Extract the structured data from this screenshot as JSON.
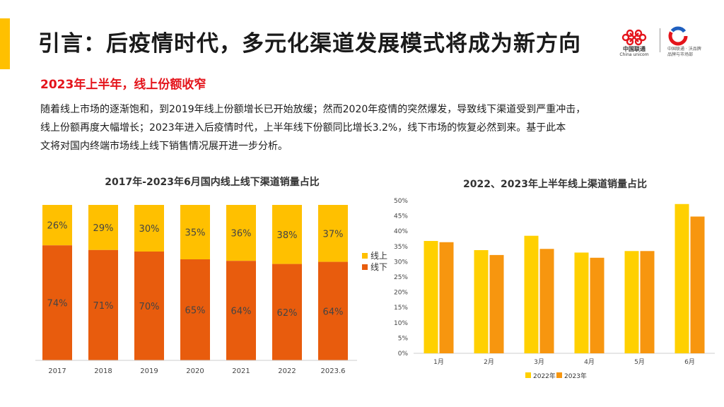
{
  "header": {
    "title": "引言：后疫情时代，多元化渠道发展模式将成为新方向",
    "logo_cu_text": "中国联通",
    "logo_cu_en": "China unicom",
    "logo2_text": "中国联通 · 沃品牌",
    "logo2_sub": "品牌与市场部"
  },
  "subtitle": "2023年上半年，线上份额收窄",
  "paragraph": {
    "line1": "随着线上市场的逐渐饱和，到2019年线上份额增长已开始放缓；然而2020年疫情的突然爆发，导致线下渠道受到严重冲击，",
    "line2": "线上份额再度大幅增长；2023年进入后疫情时代，上半年线下份额同比增长3.2%，线下市场的恢复必然到来。基于此本",
    "line3": "文将对国内终端市场线上线下销售情况展开进一步分析。"
  },
  "colors": {
    "online": "#ffc000",
    "offline": "#e85c0d",
    "y2022": "#ffd000",
    "y2023": "#f7960f",
    "accent": "#ffc000",
    "red": "#e4141b"
  },
  "chart_data": [
    {
      "type": "bar",
      "stacked": true,
      "percent": true,
      "title": "2017年-2023年6月国内线上线下渠道销量占比",
      "categories": [
        "2017",
        "2018",
        "2019",
        "2020",
        "2021",
        "2022",
        "2023.6"
      ],
      "series": [
        {
          "name": "线下",
          "values": [
            74,
            71,
            70,
            65,
            64,
            62,
            64
          ],
          "labels": [
            "74%",
            "71%",
            "70%",
            "65%",
            "64%",
            "62%",
            "64%"
          ]
        },
        {
          "name": "线上",
          "values": [
            26,
            29,
            30,
            35,
            36,
            38,
            37
          ],
          "labels": [
            "26%",
            "29%",
            "30%",
            "35%",
            "36%",
            "38%",
            "37%"
          ]
        }
      ],
      "legend": [
        "线上",
        "线下"
      ],
      "legend_position": "right"
    },
    {
      "type": "bar",
      "title": "2022、2023年上半年线上渠道销量占比",
      "categories": [
        "1月",
        "2月",
        "3月",
        "4月",
        "5月",
        "6月"
      ],
      "series": [
        {
          "name": "2022年",
          "values": [
            36.8,
            33.8,
            38.5,
            33.0,
            33.5,
            48.9
          ]
        },
        {
          "name": "2023年",
          "values": [
            36.4,
            32.2,
            34.2,
            31.3,
            33.5,
            44.8
          ]
        }
      ],
      "ylim": [
        0,
        50
      ],
      "yticks": [
        "0%",
        "5%",
        "10%",
        "15%",
        "20%",
        "25%",
        "30%",
        "35%",
        "40%",
        "45%",
        "50%"
      ],
      "legend": [
        "2022年",
        "2023年"
      ],
      "legend_position": "bottom"
    }
  ]
}
